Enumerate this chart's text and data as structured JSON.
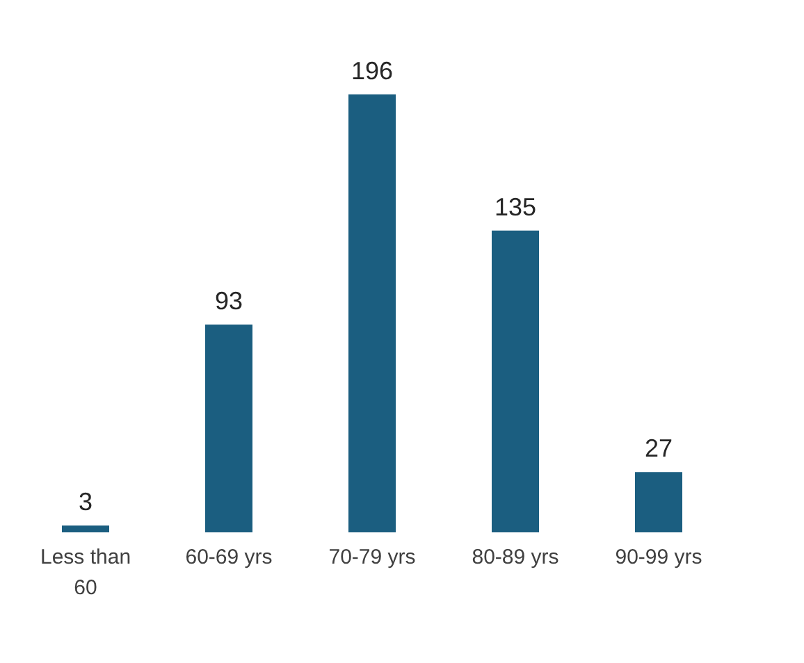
{
  "chart_data": {
    "type": "bar",
    "categories": [
      "Less than 60",
      "60-69 yrs",
      "70-79 yrs",
      "80-89 yrs",
      "90-99 yrs"
    ],
    "values": [
      3,
      93,
      196,
      135,
      27
    ],
    "color": "#1b5e80",
    "data_labels": true
  }
}
